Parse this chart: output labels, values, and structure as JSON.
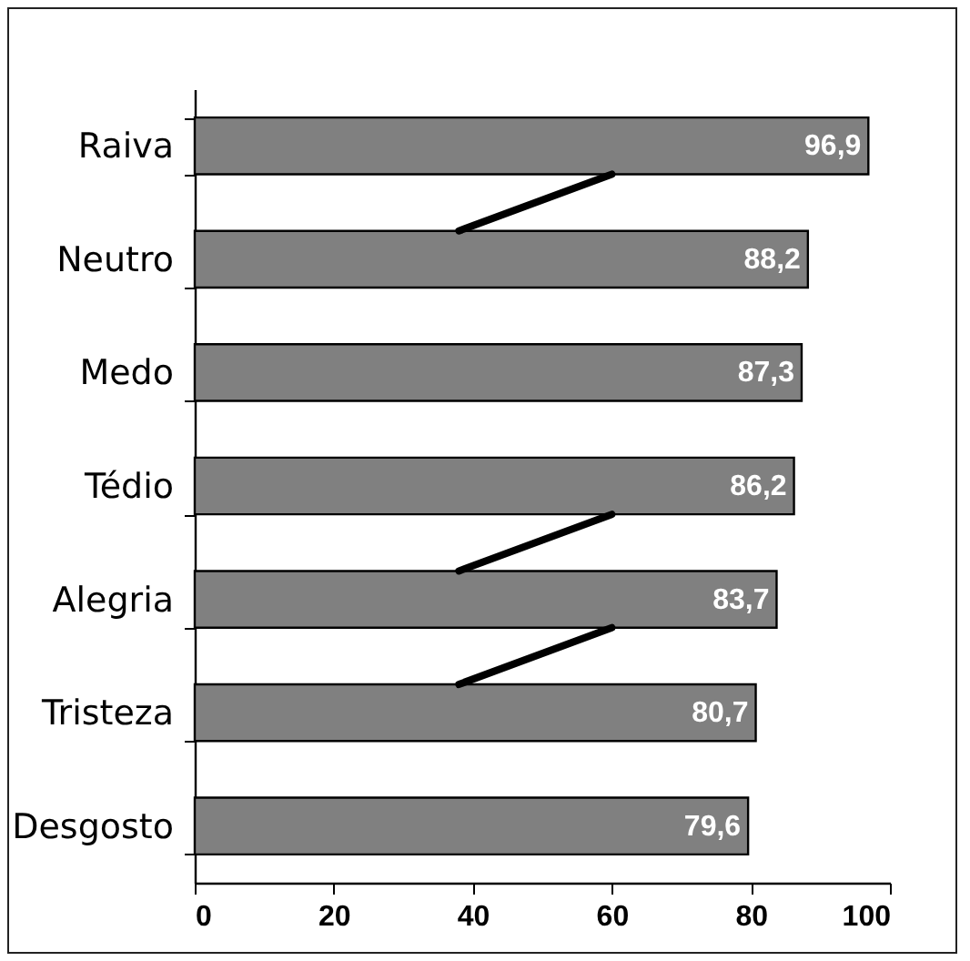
{
  "chart_data": {
    "type": "bar",
    "orientation": "horizontal",
    "categories": [
      "Raiva",
      "Neutro",
      "Medo",
      "Tédio",
      "Alegria",
      "Tristeza",
      "Desgosto"
    ],
    "values": [
      96.9,
      88.2,
      87.3,
      86.2,
      83.7,
      80.7,
      79.6
    ],
    "value_labels": [
      "96,9",
      "88,2",
      "87,3",
      "86,2",
      "83,7",
      "80,7",
      "79,6"
    ],
    "color": "#808080",
    "xlim": [
      0,
      100
    ],
    "xticks": [
      0,
      20,
      40,
      60,
      80,
      100
    ],
    "grid": false
  }
}
